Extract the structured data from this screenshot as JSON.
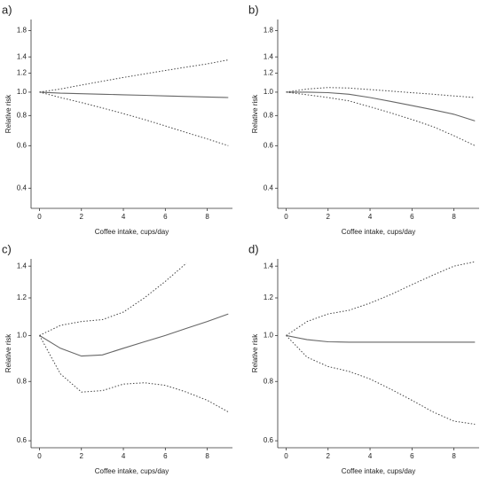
{
  "chart_data": [
    {
      "type": "line",
      "label": "a)",
      "y_label": "Relative risk",
      "x_label": "Coffee intake, cups/day",
      "x": [
        0,
        1,
        2,
        3,
        4,
        5,
        6,
        7,
        8,
        9
      ],
      "log_y": true,
      "xlim": [
        -0.4,
        9.2
      ],
      "ylim": [
        0.33,
        2.0
      ],
      "xticks": [
        0,
        2,
        4,
        6,
        8
      ],
      "yticks": [
        0.4,
        0.6,
        0.8,
        {
          "value": 1,
          "label": "1.0"
        },
        1.2,
        1.4,
        1.8
      ],
      "series": [
        {
          "color": "#666666",
          "dash": "solid",
          "values": [
            1,
            0.99,
            0.985,
            0.98,
            0.975,
            0.97,
            0.965,
            0.96,
            0.955,
            0.95
          ]
        },
        {
          "color": "#444444",
          "dash": "dotted",
          "values": [
            1,
            1.03,
            1.07,
            1.11,
            1.15,
            1.19,
            1.23,
            1.27,
            1.31,
            1.36
          ]
        },
        {
          "color": "#444444",
          "dash": "dotted",
          "values": [
            1,
            0.95,
            0.905,
            0.86,
            0.815,
            0.77,
            0.725,
            0.68,
            0.64,
            0.6
          ]
        }
      ]
    },
    {
      "type": "line",
      "label": "b)",
      "y_label": "Relative risk",
      "x_label": "Coffee intake, cups/day",
      "x": [
        0,
        1,
        2,
        3,
        4,
        5,
        6,
        7,
        8,
        9
      ],
      "log_y": true,
      "xlim": [
        -0.4,
        9.2
      ],
      "ylim": [
        0.33,
        2.0
      ],
      "xticks": [
        0,
        2,
        4,
        6,
        8
      ],
      "yticks": [
        0.4,
        0.6,
        0.8,
        {
          "value": 1,
          "label": "1.0"
        },
        1.2,
        1.4,
        1.8
      ],
      "series": [
        {
          "color": "#666666",
          "dash": "solid",
          "values": [
            1,
            1,
            0.995,
            0.98,
            0.95,
            0.915,
            0.88,
            0.845,
            0.81,
            0.76
          ]
        },
        {
          "color": "#444444",
          "dash": "dotted",
          "values": [
            1,
            1.03,
            1.045,
            1.04,
            1.025,
            1.01,
            0.995,
            0.98,
            0.965,
            0.95
          ]
        },
        {
          "color": "#444444",
          "dash": "dotted",
          "values": [
            1,
            0.975,
            0.95,
            0.92,
            0.87,
            0.82,
            0.77,
            0.72,
            0.66,
            0.6
          ]
        }
      ]
    },
    {
      "type": "line",
      "label": "c)",
      "y_label": "Relative risk",
      "x_label": "Coffee intake, cups/day",
      "x": [
        0,
        1,
        2,
        3,
        4,
        5,
        6,
        7,
        8,
        9
      ],
      "log_y": true,
      "xlim": [
        -0.4,
        9.2
      ],
      "ylim": [
        0.58,
        1.45
      ],
      "xticks": [
        0,
        2,
        4,
        6,
        8
      ],
      "yticks": [
        0.6,
        0.8,
        {
          "value": 1,
          "label": "1.0"
        },
        1.2,
        1.4
      ],
      "series": [
        {
          "color": "#666666",
          "dash": "solid",
          "values": [
            1,
            0.94,
            0.905,
            0.91,
            0.94,
            0.97,
            1.0,
            1.035,
            1.07,
            1.11
          ]
        },
        {
          "color": "#444444",
          "dash": "dotted",
          "values": [
            1,
            1.05,
            1.07,
            1.08,
            1.12,
            1.2,
            1.3,
            1.42,
            null,
            null
          ]
        },
        {
          "color": "#444444",
          "dash": "dotted",
          "values": [
            1,
            0.83,
            0.76,
            0.765,
            0.79,
            0.795,
            0.785,
            0.76,
            0.73,
            0.69
          ]
        }
      ]
    },
    {
      "type": "line",
      "label": "d)",
      "y_label": "Relative risk",
      "x_label": "Coffee intake, cups/day",
      "x": [
        0,
        1,
        2,
        3,
        4,
        5,
        6,
        7,
        8,
        9
      ],
      "log_y": true,
      "xlim": [
        -0.4,
        9.2
      ],
      "ylim": [
        0.58,
        1.45
      ],
      "xticks": [
        0,
        2,
        4,
        6,
        8
      ],
      "yticks": [
        0.6,
        0.8,
        {
          "value": 1,
          "label": "1.0"
        },
        1.2,
        1.4
      ],
      "series": [
        {
          "color": "#666666",
          "dash": "solid",
          "values": [
            1,
            0.98,
            0.97,
            0.968,
            0.968,
            0.968,
            0.968,
            0.968,
            0.968,
            0.968
          ]
        },
        {
          "color": "#444444",
          "dash": "dotted",
          "values": [
            1,
            1.07,
            1.11,
            1.13,
            1.17,
            1.22,
            1.28,
            1.34,
            1.4,
            1.43
          ]
        },
        {
          "color": "#444444",
          "dash": "dotted",
          "values": [
            1,
            0.9,
            0.86,
            0.84,
            0.81,
            0.77,
            0.73,
            0.69,
            0.66,
            0.65
          ]
        }
      ]
    }
  ]
}
